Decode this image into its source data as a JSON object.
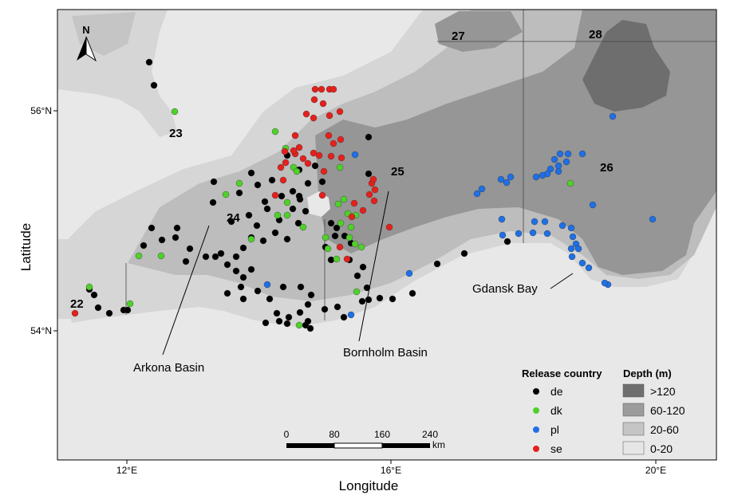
{
  "axes": {
    "xlabel": "Longitude",
    "ylabel": "Latitude",
    "x_ticks": [
      "12°E",
      "16°E",
      "20°E"
    ],
    "y_ticks": [
      "56°N",
      "54°N"
    ]
  },
  "north_arrow": {
    "label": "N"
  },
  "subdivisions": [
    {
      "label": "22"
    },
    {
      "label": "23"
    },
    {
      "label": "24"
    },
    {
      "label": "25"
    },
    {
      "label": "26"
    },
    {
      "label": "27"
    },
    {
      "label": "28"
    }
  ],
  "place_labels": {
    "arkona": "Arkona Basin",
    "bornholm": "Bornholm Basin",
    "gdansk": "Gdansk Bay"
  },
  "scale_bar": {
    "ticks": [
      "0",
      "80",
      "160",
      "240"
    ],
    "unit": "km"
  },
  "legend_release": {
    "title": "Release country",
    "items": [
      {
        "label": "de",
        "color": "#000000"
      },
      {
        "label": "dk",
        "color": "#4fd12a"
      },
      {
        "label": "pl",
        "color": "#1f6fe6"
      },
      {
        "label": "se",
        "color": "#e5201c"
      }
    ]
  },
  "legend_depth": {
    "title": "Depth (m)",
    "items": [
      {
        "label": ">120",
        "color": "#6e6e6e"
      },
      {
        "label": "60-120",
        "color": "#9c9c9c"
      },
      {
        "label": "20-60",
        "color": "#c5c5c5"
      },
      {
        "label": "0-20",
        "color": "#e6e6e6"
      }
    ]
  },
  "colors": {
    "land": "#e8e8e8",
    "sea_shallow": "#d6d6d6",
    "sea_mid": "#bdbdbd",
    "sea_deep": "#969696",
    "sea_deepest": "#6e6e6e"
  }
}
